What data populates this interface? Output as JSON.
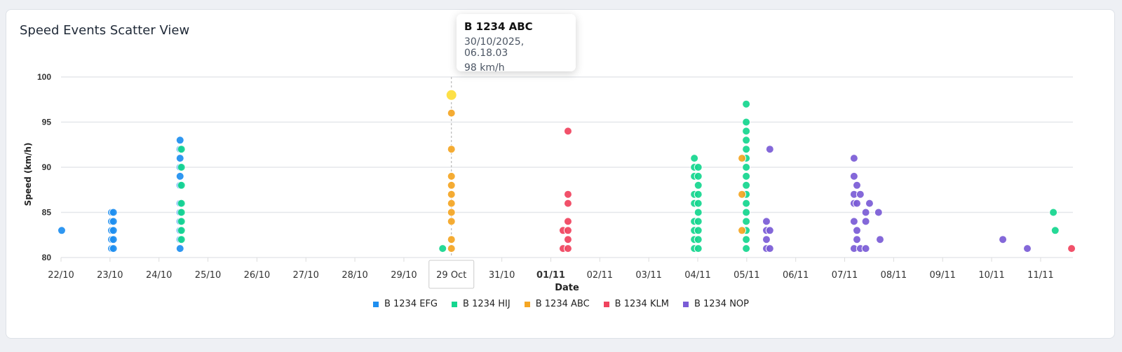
{
  "chart_data": {
    "type": "scatter",
    "title": "Speed Events Scatter View",
    "xlabel": "Date",
    "ylabel": "Speed (km/h)",
    "ylim": [
      80,
      100
    ],
    "y_ticks": [
      "80",
      "85",
      "90",
      "95",
      "100"
    ],
    "xlim": [
      "2025-10-22T00:00Z",
      "2025-11-11T15:50Z"
    ],
    "x_ticks": [
      {
        "date": "2025-10-22",
        "label": "22/10"
      },
      {
        "date": "2025-10-23",
        "label": "23/10"
      },
      {
        "date": "2025-10-24",
        "label": "24/10"
      },
      {
        "date": "2025-10-25",
        "label": "25/10"
      },
      {
        "date": "2025-10-26",
        "label": "26/10"
      },
      {
        "date": "2025-10-27",
        "label": "27/10"
      },
      {
        "date": "2025-10-28",
        "label": "28/10"
      },
      {
        "date": "2025-10-29",
        "label": "29/10"
      },
      {
        "date": "2025-10-31",
        "label": "31/10"
      },
      {
        "date": "2025-11-01",
        "label": "01/11",
        "bold": true
      },
      {
        "date": "2025-11-02",
        "label": "02/11"
      },
      {
        "date": "2025-11-03",
        "label": "03/11"
      },
      {
        "date": "2025-11-04",
        "label": "04/11"
      },
      {
        "date": "2025-11-05",
        "label": "05/11"
      },
      {
        "date": "2025-11-06",
        "label": "06/11"
      },
      {
        "date": "2025-11-07",
        "label": "07/11"
      },
      {
        "date": "2025-11-08",
        "label": "08/11"
      },
      {
        "date": "2025-11-09",
        "label": "09/11"
      },
      {
        "date": "2025-11-10",
        "label": "10/11"
      },
      {
        "date": "2025-11-11",
        "label": "11/11"
      }
    ],
    "grid": true,
    "legend_position": "bottom",
    "crosshair": {
      "date": "2025-10-29T23:18Z",
      "label": "29 Oct"
    },
    "highlight": {
      "series": "B 1234 ABC",
      "date": "2025-10-29T23:18Z",
      "speed": 98,
      "color": "#fde047"
    },
    "series": [
      {
        "name": "B 1234 EFG",
        "color": "#1e8ff0",
        "points": [
          [
            "2025-10-22T00:20Z",
            83
          ],
          [
            "2025-10-23T00:45Z",
            85
          ],
          [
            "2025-10-23T00:45Z",
            84
          ],
          [
            "2025-10-23T00:45Z",
            83
          ],
          [
            "2025-10-23T00:45Z",
            82
          ],
          [
            "2025-10-23T00:45Z",
            81
          ],
          [
            "2025-10-23T01:40Z",
            85
          ],
          [
            "2025-10-23T01:40Z",
            84
          ],
          [
            "2025-10-23T01:40Z",
            83
          ],
          [
            "2025-10-23T01:40Z",
            82
          ],
          [
            "2025-10-23T01:40Z",
            81
          ],
          [
            "2025-10-24T10:20Z",
            93
          ],
          [
            "2025-10-24T10:20Z",
            92
          ],
          [
            "2025-10-24T10:20Z",
            91
          ],
          [
            "2025-10-24T10:20Z",
            90
          ],
          [
            "2025-10-24T10:20Z",
            89
          ],
          [
            "2025-10-24T10:20Z",
            88
          ],
          [
            "2025-10-24T10:20Z",
            86
          ],
          [
            "2025-10-24T10:20Z",
            85
          ],
          [
            "2025-10-24T10:20Z",
            84
          ],
          [
            "2025-10-24T10:20Z",
            83
          ],
          [
            "2025-10-24T10:20Z",
            82
          ],
          [
            "2025-10-24T10:20Z",
            81
          ]
        ]
      },
      {
        "name": "B 1234 HIJ",
        "color": "#14d68f",
        "points": [
          [
            "2025-10-24T11:00Z",
            92
          ],
          [
            "2025-10-24T11:00Z",
            90
          ],
          [
            "2025-10-24T11:00Z",
            88
          ],
          [
            "2025-10-24T11:00Z",
            86
          ],
          [
            "2025-10-24T11:00Z",
            85
          ],
          [
            "2025-10-24T11:00Z",
            84
          ],
          [
            "2025-10-24T11:00Z",
            83
          ],
          [
            "2025-10-24T11:00Z",
            82
          ],
          [
            "2025-10-29T19:00Z",
            81
          ],
          [
            "2025-11-03T22:20Z",
            91
          ],
          [
            "2025-11-03T22:20Z",
            90
          ],
          [
            "2025-11-03T22:20Z",
            89
          ],
          [
            "2025-11-03T22:20Z",
            87
          ],
          [
            "2025-11-03T22:20Z",
            86
          ],
          [
            "2025-11-03T22:20Z",
            84
          ],
          [
            "2025-11-03T22:20Z",
            83
          ],
          [
            "2025-11-03T22:20Z",
            82
          ],
          [
            "2025-11-03T22:20Z",
            81
          ],
          [
            "2025-11-04T00:15Z",
            90
          ],
          [
            "2025-11-04T00:15Z",
            89
          ],
          [
            "2025-11-04T00:15Z",
            88
          ],
          [
            "2025-11-04T00:15Z",
            87
          ],
          [
            "2025-11-04T00:15Z",
            86
          ],
          [
            "2025-11-04T00:15Z",
            85
          ],
          [
            "2025-11-04T00:15Z",
            84
          ],
          [
            "2025-11-04T00:15Z",
            83
          ],
          [
            "2025-11-04T00:15Z",
            82
          ],
          [
            "2025-11-04T00:15Z",
            81
          ],
          [
            "2025-11-04T23:45Z",
            97
          ],
          [
            "2025-11-04T23:45Z",
            95
          ],
          [
            "2025-11-04T23:45Z",
            94
          ],
          [
            "2025-11-04T23:45Z",
            93
          ],
          [
            "2025-11-04T23:45Z",
            92
          ],
          [
            "2025-11-04T23:45Z",
            91
          ],
          [
            "2025-11-04T23:45Z",
            90
          ],
          [
            "2025-11-04T23:45Z",
            89
          ],
          [
            "2025-11-04T23:45Z",
            88
          ],
          [
            "2025-11-04T23:45Z",
            87
          ],
          [
            "2025-11-04T23:45Z",
            86
          ],
          [
            "2025-11-04T23:45Z",
            85
          ],
          [
            "2025-11-04T23:45Z",
            84
          ],
          [
            "2025-11-04T23:45Z",
            83
          ],
          [
            "2025-11-04T23:45Z",
            82
          ],
          [
            "2025-11-04T23:45Z",
            81
          ],
          [
            "2025-11-11T06:15Z",
            85
          ],
          [
            "2025-11-11T07:10Z",
            83
          ]
        ]
      },
      {
        "name": "B 1234 ABC",
        "color": "#f5a623",
        "points": [
          [
            "2025-10-29T23:18Z",
            98
          ],
          [
            "2025-10-29T23:18Z",
            96
          ],
          [
            "2025-10-29T23:18Z",
            92
          ],
          [
            "2025-10-29T23:18Z",
            89
          ],
          [
            "2025-10-29T23:18Z",
            88
          ],
          [
            "2025-10-29T23:18Z",
            87
          ],
          [
            "2025-10-29T23:18Z",
            86
          ],
          [
            "2025-10-29T23:18Z",
            85
          ],
          [
            "2025-10-29T23:18Z",
            84
          ],
          [
            "2025-10-29T23:18Z",
            82
          ],
          [
            "2025-10-29T23:18Z",
            81
          ],
          [
            "2025-11-04T21:40Z",
            91
          ],
          [
            "2025-11-04T21:40Z",
            87
          ],
          [
            "2025-11-04T21:40Z",
            83
          ]
        ]
      },
      {
        "name": "B 1234 KLM",
        "color": "#f0435e",
        "points": [
          [
            "2025-11-01T06:00Z",
            83
          ],
          [
            "2025-11-01T06:00Z",
            81
          ],
          [
            "2025-11-01T08:25Z",
            94
          ],
          [
            "2025-11-01T08:25Z",
            87
          ],
          [
            "2025-11-01T08:25Z",
            86
          ],
          [
            "2025-11-01T08:25Z",
            84
          ],
          [
            "2025-11-01T08:25Z",
            83
          ],
          [
            "2025-11-01T08:25Z",
            82
          ],
          [
            "2025-11-01T08:25Z",
            81
          ],
          [
            "2025-11-11T15:10Z",
            81
          ]
        ]
      },
      {
        "name": "B 1234 NOP",
        "color": "#7a5cd6",
        "points": [
          [
            "2025-11-05T11:20Z",
            92
          ],
          [
            "2025-11-05T09:40Z",
            84
          ],
          [
            "2025-11-05T09:40Z",
            83
          ],
          [
            "2025-11-05T11:20Z",
            83
          ],
          [
            "2025-11-05T09:40Z",
            82
          ],
          [
            "2025-11-05T09:40Z",
            81
          ],
          [
            "2025-11-05T11:20Z",
            81
          ],
          [
            "2025-11-07T04:35Z",
            91
          ],
          [
            "2025-11-07T04:35Z",
            89
          ],
          [
            "2025-11-07T06:00Z",
            88
          ],
          [
            "2025-11-07T04:35Z",
            87
          ],
          [
            "2025-11-07T07:40Z",
            87
          ],
          [
            "2025-11-07T04:35Z",
            86
          ],
          [
            "2025-11-07T06:00Z",
            86
          ],
          [
            "2025-11-07T12:10Z",
            86
          ],
          [
            "2025-11-07T10:20Z",
            85
          ],
          [
            "2025-11-07T16:35Z",
            85
          ],
          [
            "2025-11-07T04:35Z",
            84
          ],
          [
            "2025-11-07T10:20Z",
            84
          ],
          [
            "2025-11-07T06:00Z",
            83
          ],
          [
            "2025-11-07T06:00Z",
            82
          ],
          [
            "2025-11-07T17:20Z",
            82
          ],
          [
            "2025-11-07T04:35Z",
            81
          ],
          [
            "2025-11-07T07:40Z",
            81
          ],
          [
            "2025-11-07T10:20Z",
            81
          ],
          [
            "2025-11-10T05:30Z",
            82
          ],
          [
            "2025-11-10T17:30Z",
            81
          ]
        ]
      }
    ]
  },
  "tooltip": {
    "title": "B 1234 ABC",
    "datetime": "30/10/2025, 06.18.03",
    "value": "98 km/h"
  }
}
